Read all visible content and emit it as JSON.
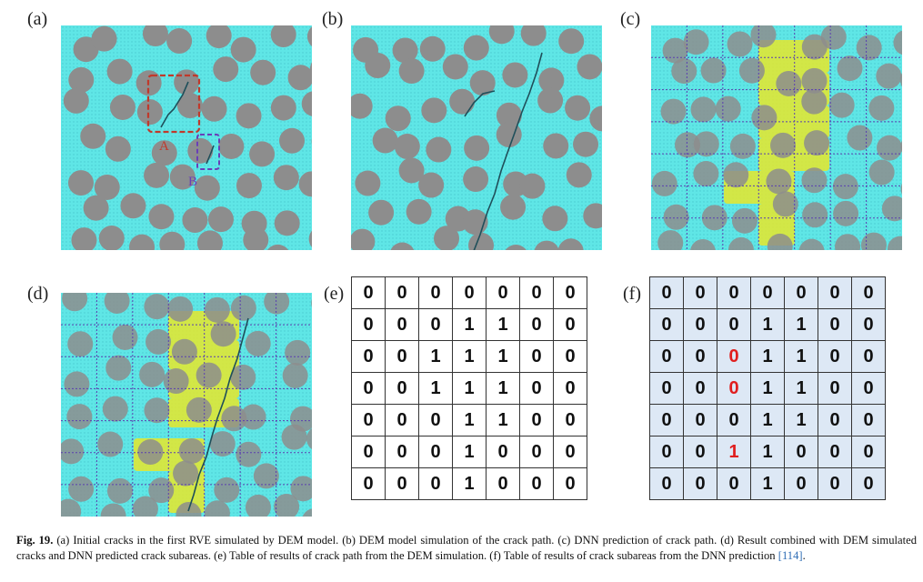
{
  "panels": {
    "a": {
      "label": "(a)",
      "annotations": [
        "A",
        "B"
      ]
    },
    "b": {
      "label": "(b)"
    },
    "c": {
      "label": "(c)"
    },
    "d": {
      "label": "(d)"
    },
    "e": {
      "label": "(e)"
    },
    "f": {
      "label": "(f)"
    }
  },
  "table_e": [
    [
      0,
      0,
      0,
      0,
      0,
      0,
      0
    ],
    [
      0,
      0,
      0,
      1,
      1,
      0,
      0
    ],
    [
      0,
      0,
      1,
      1,
      1,
      0,
      0
    ],
    [
      0,
      0,
      1,
      1,
      1,
      0,
      0
    ],
    [
      0,
      0,
      0,
      1,
      1,
      0,
      0
    ],
    [
      0,
      0,
      0,
      1,
      0,
      0,
      0
    ],
    [
      0,
      0,
      0,
      1,
      0,
      0,
      0
    ]
  ],
  "table_f": [
    [
      0,
      0,
      0,
      0,
      0,
      0,
      0
    ],
    [
      0,
      0,
      0,
      1,
      1,
      0,
      0
    ],
    [
      0,
      0,
      0,
      1,
      1,
      0,
      0
    ],
    [
      0,
      0,
      0,
      1,
      1,
      0,
      0
    ],
    [
      0,
      0,
      0,
      1,
      1,
      0,
      0
    ],
    [
      0,
      0,
      1,
      1,
      0,
      0,
      0
    ],
    [
      0,
      0,
      0,
      1,
      0,
      0,
      0
    ]
  ],
  "table_f_highlights": [
    [
      2,
      2
    ],
    [
      3,
      2
    ],
    [
      5,
      2
    ]
  ],
  "caption": {
    "fig_label": "Fig. 19.",
    "text": " (a) Initial cracks in the first RVE simulated by DEM model. (b) DEM model simulation of the crack path. (c) DNN prediction of crack path. (d) Result combined with DEM simulated cracks and DNN predicted crack subareas. (e) Table of results of crack path from the DEM simulation. (f) Table of results of crack subareas from the DNN prediction ",
    "ref": "[114]",
    "end": "."
  },
  "colors": {
    "matrix": "#5fe6e6",
    "particle": "#8d8d8d",
    "highlight_yellow": "#e6e62a",
    "grid_line": "#5a3fb0",
    "marker_A": "#c0392b",
    "marker_B": "#6a3fb8",
    "table_f_bg": "#dde8f5",
    "highlight_text": "#e01e1e"
  }
}
